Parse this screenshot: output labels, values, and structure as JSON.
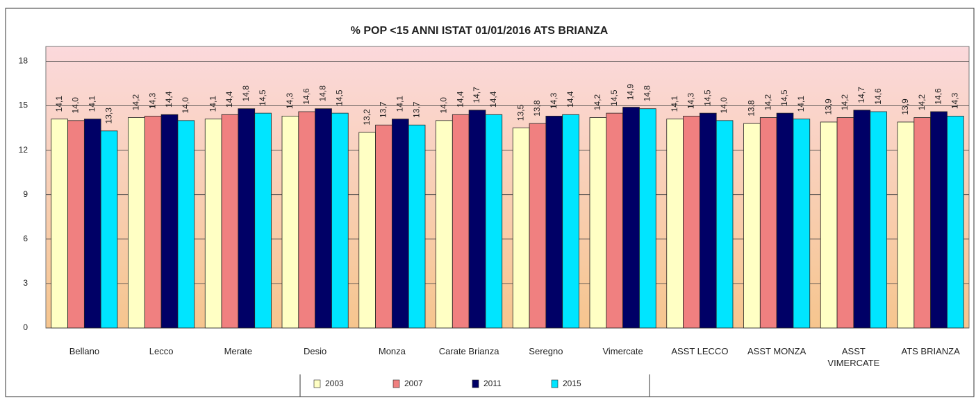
{
  "chart_data": {
    "type": "bar",
    "title": "% POP <15 ANNI ISTAT 01/01/2016  ATS BRIANZA",
    "categories": [
      "Bellano",
      "Lecco",
      "Merate",
      "Desio",
      "Monza",
      "Carate Brianza",
      "Seregno",
      "Vimercate",
      "ASST LECCO",
      "ASST MONZA",
      "ASST VIMERCATE",
      "ATS BRIANZA"
    ],
    "series": [
      {
        "name": "2003",
        "color": "#ffffc4",
        "values": [
          14.1,
          14.2,
          14.1,
          14.3,
          13.2,
          14.0,
          13.5,
          14.2,
          14.1,
          13.8,
          13.9,
          13.9
        ],
        "value_labels": [
          "14,1",
          "14,2",
          "14,1",
          "14,3",
          "13,2",
          "14,0",
          "13,5",
          "14,2",
          "14,1",
          "13,8",
          "13,9",
          "13,9"
        ]
      },
      {
        "name": "2007",
        "color": "#f08080",
        "values": [
          14.0,
          14.3,
          14.4,
          14.6,
          13.7,
          14.4,
          13.8,
          14.5,
          14.3,
          14.2,
          14.2,
          14.2
        ],
        "value_labels": [
          "14,0",
          "14,3",
          "14,4",
          "14,6",
          "13,7",
          "14,4",
          "13,8",
          "14,5",
          "14,3",
          "14,2",
          "14,2",
          "14,2"
        ]
      },
      {
        "name": "2011",
        "color": "#000066",
        "values": [
          14.1,
          14.4,
          14.8,
          14.8,
          14.1,
          14.7,
          14.3,
          14.9,
          14.5,
          14.5,
          14.7,
          14.6
        ],
        "value_labels": [
          "14,1",
          "14,4",
          "14,8",
          "14,8",
          "14,1",
          "14,7",
          "14,3",
          "14,9",
          "14,5",
          "14,5",
          "14,7",
          "14,6"
        ]
      },
      {
        "name": "2015",
        "color": "#00e5ff",
        "values": [
          13.3,
          14.0,
          14.5,
          14.5,
          13.7,
          14.4,
          14.4,
          14.8,
          14.0,
          14.1,
          14.6,
          14.3
        ],
        "value_labels": [
          "13,3",
          "14,0",
          "14,5",
          "14,5",
          "13,7",
          "14,4",
          "14,4",
          "14,8",
          "14,0",
          "14,1",
          "14,6",
          "14,3"
        ]
      }
    ],
    "ylim": [
      0,
      19
    ],
    "yticks": [
      0,
      3,
      6,
      9,
      12,
      15,
      18
    ],
    "grid": true
  }
}
